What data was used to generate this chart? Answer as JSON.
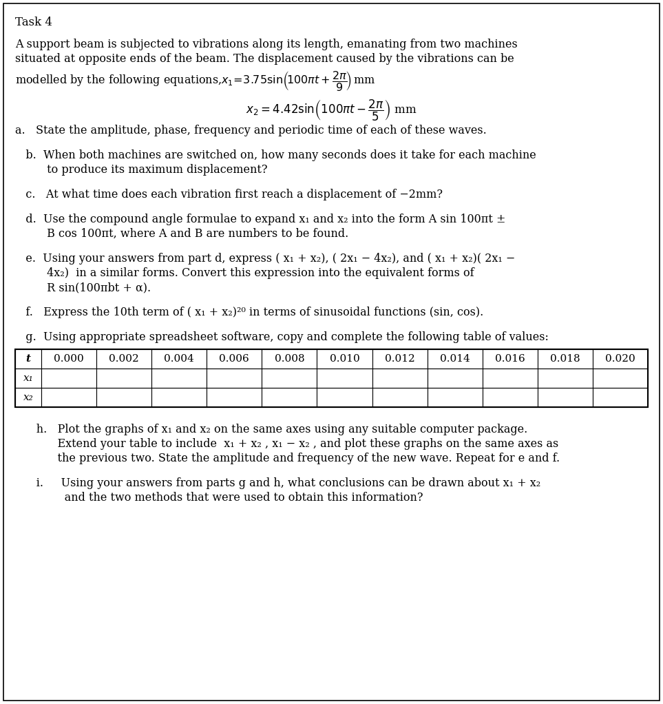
{
  "title": "Task 4",
  "bg_color": "#ffffff",
  "border_color": "#000000",
  "text_color": "#000000",
  "font_size_title": 12,
  "font_size_body": 11.5,
  "font_size_eq": 12,
  "font_size_table": 11,
  "intro_line1": "A support beam is subjected to vibrations along its length, emanating from two machines",
  "intro_line2": "situated at opposite ends of the beam. The displacement caused by the vibrations can be",
  "part_a": "a.   State the amplitude, phase, frequency and periodic time of each of these waves.",
  "part_b_line1": "   b.  When both machines are switched on, how many seconds does it take for each machine",
  "part_b_line2": "         to produce its maximum displacement?",
  "part_c": "   c.   At what time does each vibration first reach a displacement of −2mm?",
  "part_d_line1": "   d.  Use the compound angle formulae to expand x₁ and x₂ into the form A sin 100πt ±",
  "part_d_line2": "         B cos 100πt, where A and B are numbers to be found.",
  "part_e_line1": "   e.  Using your answers from part d, express ( x₁ + x₂), ( 2x₁ − 4x₂), and ( x₁ + x₂)( 2x₁ −",
  "part_e_line2": "         4x₂)  in a similar forms. Convert this expression into the equivalent forms of",
  "part_e_line3": "         R sin(100πbt + α).",
  "part_f": "   f.   Express the 10th term of ( x₁ + x₂)²⁰ in terms of sinusoidal functions (sin, cos).",
  "part_g": "   g.  Using appropriate spreadsheet software, copy and complete the following table of values:",
  "table_headers": [
    "t",
    "0.000",
    "0.002",
    "0.004",
    "0.006",
    "0.008",
    "0.010",
    "0.012",
    "0.014",
    "0.016",
    "0.018",
    "0.020"
  ],
  "table_row1_label": "x₁",
  "table_row2_label": "x₂",
  "part_h_line1": "      h.   Plot the graphs of x₁ and x₂ on the same axes using any suitable computer package.",
  "part_h_line2": "            Extend your table to include  x₁ + x₂ , x₁ − x₂ , and plot these graphs on the same axes as",
  "part_h_line3": "            the previous two. State the amplitude and frequency of the new wave. Repeat for e and f.",
  "part_i_line1": "      i.     Using your answers from parts g and h, what conclusions can be drawn about x₁ + x₂",
  "part_i_line2": "              and the two methods that were used to obtain this information?"
}
